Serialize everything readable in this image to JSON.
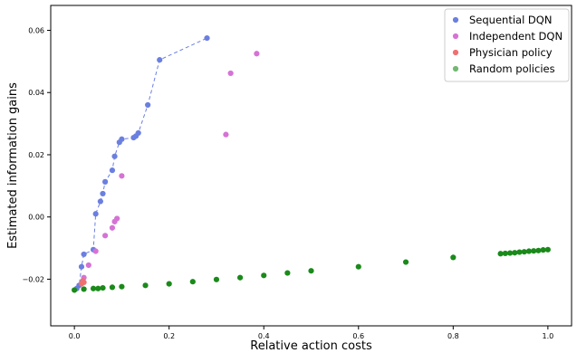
{
  "chart_data": {
    "type": "scatter",
    "title": "",
    "xlabel": "Relative action costs",
    "ylabel": "Estimated information gains",
    "xlim": [
      -0.05,
      1.05
    ],
    "ylim": [
      -0.035,
      0.068
    ],
    "x_ticks": [
      0.0,
      0.2,
      0.4,
      0.6,
      0.8,
      1.0
    ],
    "x_tick_labels": [
      "0.0",
      "0.2",
      "0.4",
      "0.6",
      "0.8",
      "1.0"
    ],
    "y_ticks": [
      -0.02,
      0.0,
      0.02,
      0.04,
      0.06
    ],
    "y_tick_labels": [
      "−0.02",
      "0.00",
      "0.02",
      "0.04",
      "0.06"
    ],
    "grid": false,
    "legend_position": "top-right",
    "series": [
      {
        "name": "Sequential DQN",
        "color": "#6b7fe0",
        "connected": true,
        "line_style": "dashed",
        "x": [
          0.005,
          0.01,
          0.015,
          0.02,
          0.04,
          0.045,
          0.055,
          0.06,
          0.065,
          0.08,
          0.085,
          0.095,
          0.1,
          0.125,
          0.13,
          0.135,
          0.155,
          0.18,
          0.28
        ],
        "y": [
          -0.023,
          -0.022,
          -0.016,
          -0.012,
          -0.0105,
          0.001,
          0.005,
          0.0075,
          0.0113,
          0.015,
          0.0195,
          0.024,
          0.025,
          0.0255,
          0.026,
          0.027,
          0.036,
          0.0505,
          0.0575
        ]
      },
      {
        "name": "Independent DQN",
        "color": "#d672d6",
        "connected": false,
        "x": [
          0.02,
          0.03,
          0.045,
          0.065,
          0.08,
          0.085,
          0.09,
          0.1,
          0.32,
          0.33,
          0.385
        ],
        "y": [
          -0.0195,
          -0.0155,
          -0.011,
          -0.006,
          -0.0035,
          -0.0015,
          -0.0005,
          0.0132,
          0.0265,
          0.0462,
          0.0525
        ]
      },
      {
        "name": "Physician policy",
        "color": "#f07070",
        "connected": false,
        "x": [
          0.015,
          0.018,
          0.02
        ],
        "y": [
          -0.0215,
          -0.0205,
          -0.021
        ]
      },
      {
        "name": "Random policies",
        "color": "#1a8a1a",
        "legend_color": "#72b872",
        "connected": false,
        "x": [
          0.0,
          0.02,
          0.04,
          0.05,
          0.06,
          0.08,
          0.1,
          0.15,
          0.2,
          0.25,
          0.3,
          0.35,
          0.4,
          0.45,
          0.5,
          0.6,
          0.7,
          0.8,
          0.9,
          0.91,
          0.92,
          0.93,
          0.94,
          0.95,
          0.96,
          0.97,
          0.98,
          0.99,
          1.0
        ],
        "y": [
          -0.0235,
          -0.0232,
          -0.023,
          -0.023,
          -0.0228,
          -0.0226,
          -0.0224,
          -0.022,
          -0.0215,
          -0.0208,
          -0.0201,
          -0.0195,
          -0.0188,
          -0.018,
          -0.0173,
          -0.016,
          -0.0145,
          -0.013,
          -0.0118,
          -0.0117,
          -0.0116,
          -0.0115,
          -0.0113,
          -0.0112,
          -0.011,
          -0.0109,
          -0.0108,
          -0.0106,
          -0.0105
        ]
      }
    ]
  }
}
